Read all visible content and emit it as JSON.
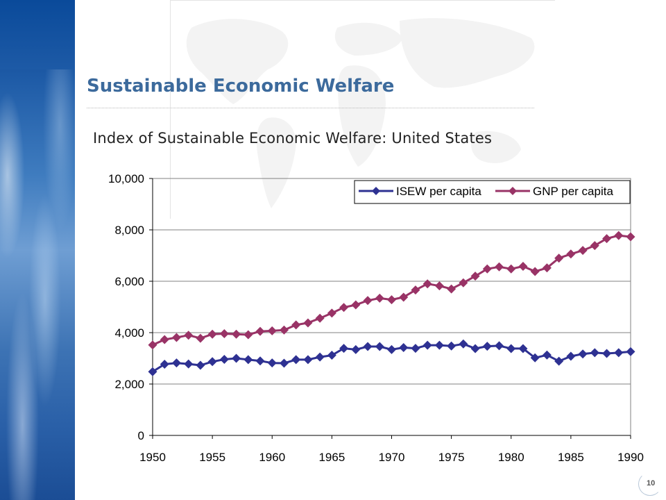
{
  "slide": {
    "title": "Sustainable Economic Welfare",
    "page_number": "10"
  },
  "chart_data": {
    "type": "line",
    "title": "Index of Sustainable Economic Welfare: United States",
    "xlabel": "",
    "ylabel": "",
    "xlim": [
      1950,
      1990
    ],
    "ylim": [
      0,
      10000
    ],
    "xticks": [
      1950,
      1955,
      1960,
      1965,
      1970,
      1975,
      1980,
      1985,
      1990
    ],
    "yticks": [
      0,
      2000,
      4000,
      6000,
      8000,
      10000
    ],
    "xtick_labels": [
      "1950",
      "1955",
      "1960",
      "1965",
      "1970",
      "1975",
      "1980",
      "1985",
      "1990"
    ],
    "ytick_labels": [
      "0",
      "2,000",
      "4,000",
      "6,000",
      "8,000",
      "10,000"
    ],
    "grid": "horizontal",
    "legend_position": "top-right",
    "x": [
      1950,
      1951,
      1952,
      1953,
      1954,
      1955,
      1956,
      1957,
      1958,
      1959,
      1960,
      1961,
      1962,
      1963,
      1964,
      1965,
      1966,
      1967,
      1968,
      1969,
      1970,
      1971,
      1972,
      1973,
      1974,
      1975,
      1976,
      1977,
      1978,
      1979,
      1980,
      1981,
      1982,
      1983,
      1984,
      1985,
      1986,
      1987,
      1988,
      1989,
      1990
    ],
    "series": [
      {
        "name": "ISEW per capita",
        "color": "#2e3192",
        "values": [
          2480,
          2770,
          2820,
          2780,
          2730,
          2870,
          2960,
          3000,
          2950,
          2900,
          2820,
          2810,
          2950,
          2950,
          3050,
          3120,
          3390,
          3340,
          3460,
          3460,
          3340,
          3420,
          3390,
          3510,
          3510,
          3480,
          3560,
          3380,
          3470,
          3490,
          3380,
          3380,
          3020,
          3130,
          2890,
          3080,
          3170,
          3220,
          3190,
          3220,
          3260
        ]
      },
      {
        "name": "GNP per capita",
        "color": "#993366",
        "values": [
          3520,
          3730,
          3810,
          3900,
          3780,
          3940,
          3960,
          3940,
          3920,
          4050,
          4070,
          4100,
          4300,
          4380,
          4560,
          4760,
          4980,
          5080,
          5250,
          5340,
          5280,
          5380,
          5660,
          5900,
          5820,
          5700,
          5940,
          6200,
          6480,
          6560,
          6480,
          6580,
          6380,
          6520,
          6900,
          7060,
          7200,
          7390,
          7660,
          7780,
          7730
        ]
      }
    ]
  }
}
